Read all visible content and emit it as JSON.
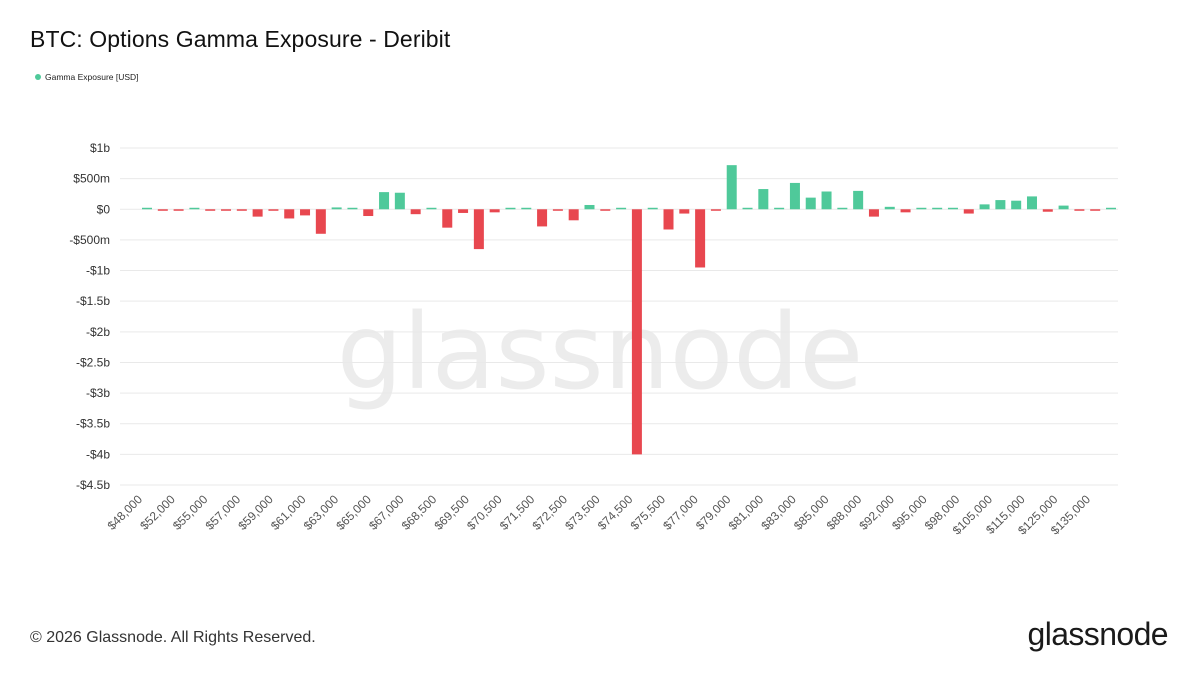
{
  "title": "BTC: Options Gamma Exposure - Deribit",
  "legend": {
    "label": "Gamma Exposure [USD]"
  },
  "footer": {
    "copyright": "© 2026 Glassnode. All Rights Reserved.",
    "brand": "glassnode"
  },
  "watermark": "glassnode",
  "colors": {
    "positive": "#4fc99a",
    "negative": "#e8474f",
    "grid": "#e9e9e9",
    "axis_text": "#555555"
  },
  "chart_data": {
    "type": "bar",
    "title": "BTC: Options Gamma Exposure - Deribit",
    "xlabel": "",
    "ylabel": "",
    "ylim": [
      -4.5,
      1
    ],
    "y_unit": "USD billions",
    "grid": true,
    "legend_position": "top-left",
    "y_ticks": [
      {
        "value": 1,
        "label": "$1b"
      },
      {
        "value": 0.5,
        "label": "$500m"
      },
      {
        "value": 0,
        "label": "$0"
      },
      {
        "value": -0.5,
        "label": "-$500m"
      },
      {
        "value": -1,
        "label": "-$1b"
      },
      {
        "value": -1.5,
        "label": "-$1.5b"
      },
      {
        "value": -2,
        "label": "-$2b"
      },
      {
        "value": -2.5,
        "label": "-$2.5b"
      },
      {
        "value": -3,
        "label": "-$3b"
      },
      {
        "value": -3.5,
        "label": "-$3.5b"
      },
      {
        "value": -4,
        "label": "-$4b"
      },
      {
        "value": -4.5,
        "label": "-$4.5b"
      }
    ],
    "x_tick_labels": [
      "$48,000",
      "$52,000",
      "$55,000",
      "$57,000",
      "$59,000",
      "$61,000",
      "$63,000",
      "$65,000",
      "$67,000",
      "$68,500",
      "$69,500",
      "$70,500",
      "$71,500",
      "$72,500",
      "$73,500",
      "$74,500",
      "$75,500",
      "$77,000",
      "$79,000",
      "$81,000",
      "$83,000",
      "$85,000",
      "$88,000",
      "$92,000",
      "$95,000",
      "$98,000",
      "$105,000",
      "$115,000",
      "$125,000",
      "$135,000"
    ],
    "series": [
      {
        "name": "Gamma Exposure [USD]",
        "values": [
          0,
          -0.02,
          -0.01,
          0,
          -0.02,
          -0.02,
          -0.02,
          -0.12,
          -0.02,
          -0.15,
          -0.1,
          -0.4,
          0.03,
          0,
          -0.11,
          0.28,
          0.27,
          -0.08,
          0,
          -0.3,
          -0.06,
          -0.65,
          -0.05,
          0.02,
          0,
          -0.28,
          -0.02,
          -0.18,
          0.07,
          -0.02,
          0,
          -4.0,
          0,
          -0.33,
          -0.07,
          -0.95,
          -0.02,
          0.72,
          0,
          0.33,
          0,
          0.43,
          0.19,
          0.29,
          0.02,
          0.3,
          -0.12,
          0.04,
          -0.05,
          0,
          0,
          0.02,
          -0.07,
          0.08,
          0.15,
          0.14,
          0.21,
          -0.04,
          0.06,
          -0.02,
          -0.02,
          0
        ]
      }
    ]
  }
}
